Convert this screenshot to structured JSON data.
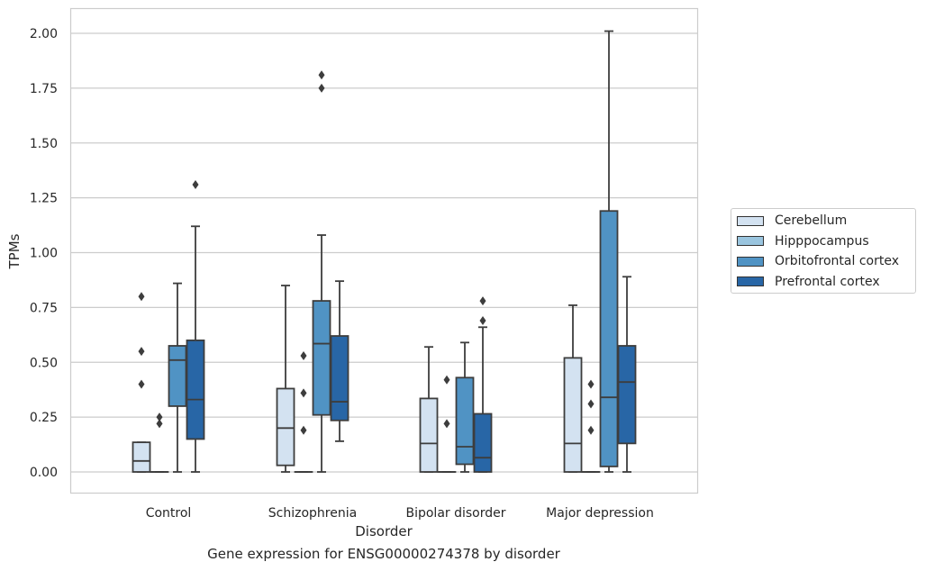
{
  "chart_data": {
    "type": "box",
    "xlabel": "Disorder",
    "ylabel": "TPMs",
    "caption": "Gene expression for ENSG00000274378 by disorder",
    "ylim": [
      -0.1,
      2.12
    ],
    "yticks": [
      "0.00",
      "0.25",
      "0.50",
      "0.75",
      "1.00",
      "1.25",
      "1.50",
      "1.75",
      "2.00"
    ],
    "grid": true,
    "legend_position": "right",
    "categories": [
      "Control",
      "Schizophrenia",
      "Bipolar disorder",
      "Major depression"
    ],
    "series": [
      {
        "name": "Cerebellum",
        "color": "#d3e2f1",
        "boxes": [
          {
            "q1": 0.0,
            "median": 0.05,
            "q3": 0.135,
            "whisker_low": 0.0,
            "whisker_high": 0.135,
            "outliers": [
              0.4,
              0.55,
              0.8
            ]
          },
          {
            "q1": 0.03,
            "median": 0.2,
            "q3": 0.38,
            "whisker_low": 0.0,
            "whisker_high": 0.85,
            "outliers": []
          },
          {
            "q1": 0.0,
            "median": 0.13,
            "q3": 0.335,
            "whisker_low": 0.0,
            "whisker_high": 0.57,
            "outliers": []
          },
          {
            "q1": 0.0,
            "median": 0.13,
            "q3": 0.52,
            "whisker_low": 0.0,
            "whisker_high": 0.76,
            "outliers": []
          }
        ]
      },
      {
        "name": "Hipppocampus",
        "color": "#9ac5df",
        "boxes": [
          {
            "q1": 0.0,
            "median": 0.0,
            "q3": 0.0,
            "whisker_low": 0.0,
            "whisker_high": 0.0,
            "outliers": [
              0.22,
              0.25
            ]
          },
          {
            "q1": 0.0,
            "median": 0.0,
            "q3": 0.0,
            "whisker_low": 0.0,
            "whisker_high": 0.0,
            "outliers": [
              0.19,
              0.36,
              0.53
            ]
          },
          {
            "q1": 0.0,
            "median": 0.0,
            "q3": 0.0,
            "whisker_low": 0.0,
            "whisker_high": 0.0,
            "outliers": [
              0.22,
              0.42
            ]
          },
          {
            "q1": 0.0,
            "median": 0.0,
            "q3": 0.0,
            "whisker_low": 0.0,
            "whisker_high": 0.0,
            "outliers": [
              0.19,
              0.31,
              0.4
            ]
          }
        ]
      },
      {
        "name": "Orbitofrontal cortex",
        "color": "#5093c4",
        "boxes": [
          {
            "q1": 0.3,
            "median": 0.51,
            "q3": 0.575,
            "whisker_low": 0.0,
            "whisker_high": 0.86,
            "outliers": []
          },
          {
            "q1": 0.26,
            "median": 0.585,
            "q3": 0.78,
            "whisker_low": 0.0,
            "whisker_high": 1.08,
            "outliers": [
              1.75,
              1.81
            ]
          },
          {
            "q1": 0.035,
            "median": 0.115,
            "q3": 0.43,
            "whisker_low": 0.0,
            "whisker_high": 0.59,
            "outliers": []
          },
          {
            "q1": 0.025,
            "median": 0.34,
            "q3": 1.19,
            "whisker_low": 0.0,
            "whisker_high": 2.01,
            "outliers": []
          }
        ]
      },
      {
        "name": "Prefrontal cortex",
        "color": "#2866a6",
        "boxes": [
          {
            "q1": 0.15,
            "median": 0.33,
            "q3": 0.6,
            "whisker_low": 0.0,
            "whisker_high": 1.12,
            "outliers": [
              1.31
            ]
          },
          {
            "q1": 0.235,
            "median": 0.32,
            "q3": 0.62,
            "whisker_low": 0.14,
            "whisker_high": 0.87,
            "outliers": []
          },
          {
            "q1": 0.0,
            "median": 0.065,
            "q3": 0.265,
            "whisker_low": 0.0,
            "whisker_high": 0.66,
            "outliers": [
              0.69,
              0.78
            ]
          },
          {
            "q1": 0.13,
            "median": 0.41,
            "q3": 0.575,
            "whisker_low": 0.0,
            "whisker_high": 0.89,
            "outliers": []
          }
        ]
      }
    ]
  }
}
